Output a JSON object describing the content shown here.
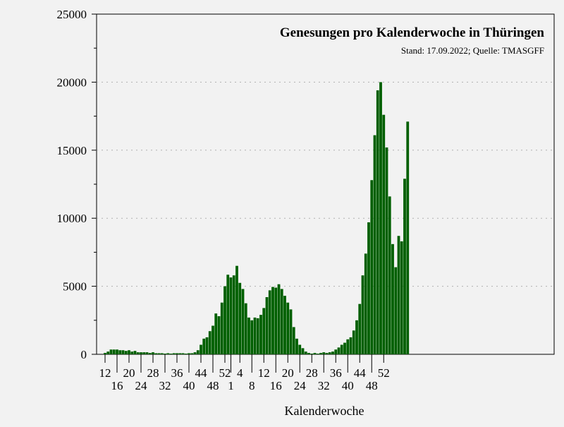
{
  "chart_data": {
    "type": "bar",
    "title": "Genesungen pro Kalenderwoche in Thüringen",
    "subtitle": "Stand: 17.09.2022; Quelle: TMASGFF",
    "xlabel": "Kalenderwoche",
    "ylabel": "",
    "ylim": [
      0,
      25000
    ],
    "yticks": [
      0,
      5000,
      10000,
      15000,
      20000,
      25000
    ],
    "grid": "horizontal dotted",
    "bar_color": "#005f00",
    "xtick_labels": [
      "12",
      "16",
      "20",
      "24",
      "28",
      "32",
      "36",
      "40",
      "44",
      "48",
      "52",
      "1",
      "4",
      "8",
      "12",
      "16",
      "20",
      "24",
      "28",
      "32",
      "36",
      "40",
      "44",
      "48",
      "52"
    ],
    "categories": [
      "12",
      "13",
      "14",
      "15",
      "16",
      "17",
      "18",
      "19",
      "20",
      "21",
      "22",
      "23",
      "24",
      "25",
      "26",
      "27",
      "28",
      "29",
      "30",
      "31",
      "32",
      "33",
      "34",
      "35",
      "36",
      "37",
      "38",
      "39",
      "40",
      "41",
      "42",
      "43",
      "44",
      "45",
      "46",
      "47",
      "48",
      "49",
      "50",
      "51",
      "52",
      "53",
      "1",
      "2",
      "3",
      "4",
      "5",
      "6",
      "7",
      "8",
      "9",
      "10",
      "11",
      "12",
      "13",
      "14",
      "15",
      "16",
      "17",
      "18",
      "19",
      "20",
      "21",
      "22",
      "23",
      "24",
      "25",
      "26",
      "27",
      "28",
      "29",
      "30",
      "31",
      "32",
      "33",
      "34",
      "35",
      "36",
      "37",
      "38",
      "39",
      "40",
      "41",
      "42",
      "43",
      "44",
      "45",
      "46",
      "47",
      "48",
      "49",
      "50",
      "51",
      "52",
      "1",
      "2",
      "3",
      "4",
      "5",
      "6",
      "7",
      "8"
    ],
    "values": [
      100,
      200,
      350,
      350,
      350,
      300,
      300,
      250,
      300,
      200,
      250,
      150,
      150,
      150,
      150,
      100,
      150,
      80,
      80,
      80,
      50,
      80,
      50,
      80,
      80,
      80,
      80,
      50,
      80,
      80,
      150,
      300,
      700,
      1150,
      1250,
      1700,
      2100,
      3000,
      2800,
      3800,
      5000,
      5850,
      5650,
      5800,
      6500,
      5250,
      4800,
      3750,
      2700,
      2500,
      2700,
      2650,
      2900,
      3400,
      4200,
      4700,
      4950,
      4900,
      5150,
      4800,
      4300,
      3800,
      3300,
      2000,
      1150,
      700,
      450,
      200,
      100,
      50,
      100,
      50,
      100,
      150,
      100,
      150,
      200,
      350,
      500,
      700,
      850,
      1100,
      1250,
      1750,
      2500,
      3700,
      5800,
      7400,
      9700,
      12800,
      16100,
      19400,
      20000,
      17600,
      15200,
      11600,
      8100,
      6400,
      8700,
      8300,
      12900,
      17100
    ]
  }
}
